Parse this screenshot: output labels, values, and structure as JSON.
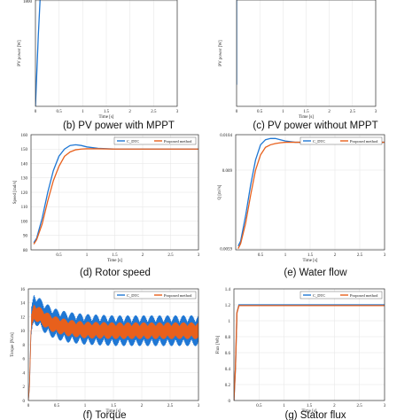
{
  "colors": {
    "c_dtc": "#1f77d4",
    "proposed": "#e8601c",
    "orange": "#e8601c",
    "blue": "#1f77d4"
  },
  "chart_data": [
    {
      "id": "b",
      "type": "line",
      "caption": "(b) PV power with MPPT",
      "xlabel": "Time [s]",
      "ylabel": "PV power [W]",
      "xlim": [
        0,
        3
      ],
      "xticks": [
        "0",
        "0.5",
        "1",
        "1.5",
        "2",
        "2.5",
        "3"
      ],
      "yticks": [
        "1800"
      ],
      "ytick_values": [
        1800
      ],
      "ylim": [
        0,
        1850
      ],
      "series": [
        {
          "color": "blue",
          "x": [
            0.0,
            0.03,
            0.06,
            0.1
          ],
          "y": [
            0,
            600,
            1200,
            1850
          ]
        }
      ]
    },
    {
      "id": "c",
      "type": "line",
      "caption": "(c) PV power without MPPT",
      "xlabel": "Time [s]",
      "ylabel": "PV power [W]",
      "xlim": [
        0,
        3
      ],
      "xticks": [
        "0",
        "0.5",
        "1",
        "1.5",
        "2",
        "2.5",
        "3"
      ],
      "yticks": [],
      "ylim": [
        0,
        1
      ],
      "series": [
        {
          "color": "blue",
          "x": [
            0.0,
            0.0
          ],
          "y": [
            0.2,
            1.0
          ]
        }
      ]
    },
    {
      "id": "d",
      "type": "line",
      "caption": "(d) Rotor speed",
      "xlabel": "Time [s]",
      "ylabel": "Speed [rad/s]",
      "xlim": [
        0,
        3
      ],
      "xticks": [
        "0.5",
        "1",
        "1.5",
        "2",
        "2.5",
        "3"
      ],
      "ylim": [
        80,
        160
      ],
      "yticks": [
        "80",
        "90",
        "100",
        "110",
        "120",
        "130",
        "140",
        "150",
        "160"
      ],
      "legend": [
        "C_DTC",
        "Proposed method"
      ],
      "series": [
        {
          "name": "C_DTC",
          "color": "blue",
          "x": [
            0.05,
            0.1,
            0.2,
            0.3,
            0.4,
            0.5,
            0.6,
            0.7,
            0.8,
            0.9,
            1.0,
            1.2,
            1.5,
            2.0,
            2.5,
            3.0
          ],
          "y": [
            85,
            88,
            102,
            120,
            135,
            145,
            150,
            152.5,
            153,
            152.5,
            151.5,
            150.5,
            150,
            150,
            150,
            150
          ]
        },
        {
          "name": "Proposed method",
          "color": "orange",
          "x": [
            0.05,
            0.1,
            0.2,
            0.3,
            0.4,
            0.5,
            0.6,
            0.7,
            0.8,
            0.9,
            1.0,
            1.2,
            1.5,
            2.0,
            2.5,
            3.0
          ],
          "y": [
            84,
            87,
            98,
            114,
            128,
            138,
            145,
            148,
            149.5,
            150,
            150.2,
            150.2,
            150,
            150,
            150,
            150
          ]
        }
      ]
    },
    {
      "id": "e",
      "type": "line",
      "caption": "(e) Water flow",
      "xlabel": "Time [s]",
      "ylabel": "Q [m³/s]",
      "xlim": [
        0,
        3
      ],
      "xticks": [
        "0.5",
        "1",
        "1.5",
        "2",
        "2.5",
        "3"
      ],
      "ylim": [
        0.00585,
        0.0104
      ],
      "yticks": [
        "0.0104",
        "0.009",
        "0.0059"
      ],
      "ytick_values": [
        0.0104,
        0.009,
        0.0059
      ],
      "legend": [
        "C_DTC",
        "Proposed method"
      ],
      "series": [
        {
          "name": "C_DTC",
          "color": "blue",
          "x": [
            0.05,
            0.1,
            0.2,
            0.3,
            0.4,
            0.5,
            0.6,
            0.7,
            0.8,
            0.9,
            1.0,
            1.2,
            1.5,
            2.0,
            2.5,
            3.0
          ],
          "y": [
            0.006,
            0.0062,
            0.0072,
            0.0084,
            0.0094,
            0.01,
            0.0102,
            0.01025,
            0.01025,
            0.0102,
            0.01015,
            0.0101,
            0.0101,
            0.0101,
            0.0101,
            0.0101
          ]
        },
        {
          "name": "Proposed method",
          "color": "orange",
          "x": [
            0.05,
            0.1,
            0.2,
            0.3,
            0.4,
            0.5,
            0.6,
            0.7,
            0.8,
            0.9,
            1.0,
            1.2,
            1.5,
            2.0,
            2.5,
            3.0
          ],
          "y": [
            0.0059,
            0.0061,
            0.0069,
            0.008,
            0.009,
            0.0096,
            0.0099,
            0.01,
            0.01005,
            0.01008,
            0.0101,
            0.0101,
            0.0101,
            0.0101,
            0.0101,
            0.0101
          ]
        }
      ]
    },
    {
      "id": "f",
      "type": "line",
      "caption": "(f) Torque",
      "xlabel": "Time [s]",
      "ylabel": "Torque [N.m]",
      "xlim": [
        0,
        3
      ],
      "xticks": [
        "0",
        "0.5",
        "1",
        "1.5",
        "2",
        "2.5",
        "3"
      ],
      "ylim": [
        0,
        16
      ],
      "yticks": [
        "0",
        "2",
        "4",
        "6",
        "8",
        "10",
        "12",
        "14",
        "16"
      ],
      "legend": [
        "C_DTC",
        "Proposed method"
      ],
      "series": [
        {
          "name": "C_DTC",
          "color": "blue",
          "ripple": 2.2,
          "x": [
            0,
            0.02,
            0.05,
            0.1,
            0.2,
            0.3,
            0.4,
            0.5,
            0.7,
            1.0,
            1.5,
            2.0,
            2.5,
            3.0
          ],
          "y": [
            0,
            2,
            11,
            13.2,
            12.5,
            11.8,
            11.3,
            10.9,
            10.5,
            10.2,
            10,
            10,
            10,
            10
          ]
        },
        {
          "name": "Proposed method",
          "color": "orange",
          "ripple": 1.2,
          "x": [
            0,
            0.02,
            0.05,
            0.1,
            0.2,
            0.3,
            0.4,
            0.5,
            0.7,
            1.0,
            1.5,
            2.0,
            2.5,
            3.0
          ],
          "y": [
            0,
            2,
            11,
            12.7,
            12.2,
            11.6,
            11.1,
            10.8,
            10.4,
            10.1,
            10,
            10,
            10,
            10
          ]
        }
      ]
    },
    {
      "id": "g",
      "type": "line",
      "caption": "(g) Stator flux",
      "xlabel": "Time [s]",
      "ylabel": "Flux [Wb]",
      "xlim": [
        0,
        3
      ],
      "xticks": [
        "0.5",
        "1",
        "1.5",
        "2",
        "2.5",
        "3"
      ],
      "ylim": [
        0,
        1.4
      ],
      "yticks": [
        "0",
        "0.2",
        "0.4",
        "0.6",
        "0.8",
        "1",
        "1.2",
        "1.4"
      ],
      "legend": [
        "C_DTC",
        "Proposed method"
      ],
      "series": [
        {
          "name": "C_DTC",
          "color": "blue",
          "x": [
            0,
            0.03,
            0.06,
            0.1,
            3.0
          ],
          "y": [
            0,
            0.4,
            1.1,
            1.2,
            1.2
          ]
        },
        {
          "name": "Proposed method",
          "color": "orange",
          "x": [
            0,
            0.03,
            0.06,
            0.1,
            3.0
          ],
          "y": [
            0,
            0.4,
            1.1,
            1.19,
            1.19
          ]
        }
      ]
    }
  ]
}
